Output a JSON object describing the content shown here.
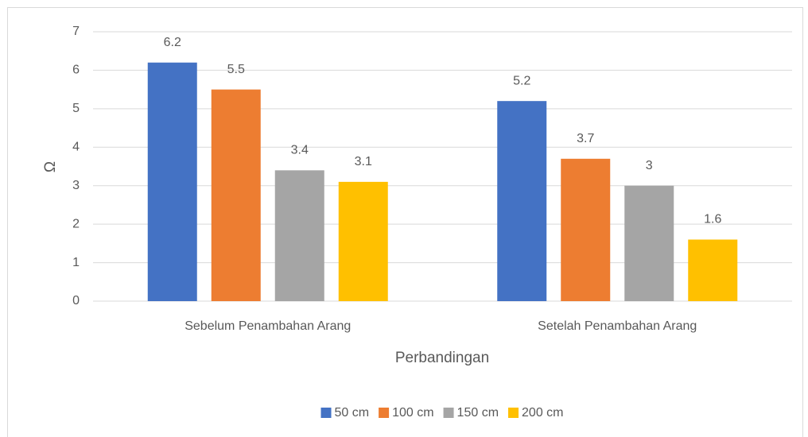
{
  "chart_data": {
    "type": "bar",
    "categories": [
      "Sebelum Penambahan Arang",
      "Setelah Penambahan Arang"
    ],
    "series": [
      {
        "name": "50 cm",
        "color": "#4472c4",
        "values": [
          6.2,
          5.2
        ]
      },
      {
        "name": "100 cm",
        "color": "#ed7d31",
        "values": [
          5.5,
          3.7
        ]
      },
      {
        "name": "150 cm",
        "color": "#a5a5a5",
        "values": [
          3.4,
          3
        ]
      },
      {
        "name": "200 cm",
        "color": "#ffc000",
        "values": [
          3.1,
          1.6
        ]
      }
    ],
    "x_label": "Perbandingan",
    "y_label": "Ω",
    "ylim": [
      0,
      7
    ],
    "yticks": [
      0,
      1,
      2,
      3,
      4,
      5,
      6,
      7
    ],
    "grid": true,
    "legend": "bottom"
  }
}
